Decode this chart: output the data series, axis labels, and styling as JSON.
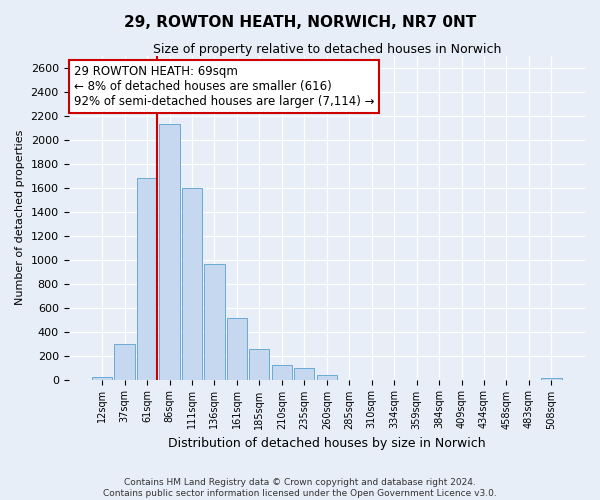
{
  "title": "29, ROWTON HEATH, NORWICH, NR7 0NT",
  "subtitle": "Size of property relative to detached houses in Norwich",
  "xlabel": "Distribution of detached houses by size in Norwich",
  "ylabel": "Number of detached properties",
  "bar_labels": [
    "12sqm",
    "37sqm",
    "61sqm",
    "86sqm",
    "111sqm",
    "136sqm",
    "161sqm",
    "185sqm",
    "210sqm",
    "235sqm",
    "260sqm",
    "285sqm",
    "310sqm",
    "334sqm",
    "359sqm",
    "384sqm",
    "409sqm",
    "434sqm",
    "458sqm",
    "483sqm",
    "508sqm"
  ],
  "bar_values": [
    20,
    300,
    1680,
    2130,
    1600,
    960,
    510,
    255,
    120,
    100,
    35,
    0,
    0,
    0,
    0,
    0,
    0,
    0,
    0,
    0,
    10
  ],
  "bar_color": "#c5d8f0",
  "bar_edge_color": "#6aaad4",
  "vline_color": "#cc0000",
  "annotation_title": "29 ROWTON HEATH: 69sqm",
  "annotation_line1": "← 8% of detached houses are smaller (616)",
  "annotation_line2": "92% of semi-detached houses are larger (7,114) →",
  "annotation_box_color": "#ffffff",
  "annotation_box_edge": "#cc0000",
  "ylim": [
    0,
    2700
  ],
  "yticks": [
    0,
    200,
    400,
    600,
    800,
    1000,
    1200,
    1400,
    1600,
    1800,
    2000,
    2200,
    2400,
    2600
  ],
  "footer_line1": "Contains HM Land Registry data © Crown copyright and database right 2024.",
  "footer_line2": "Contains public sector information licensed under the Open Government Licence v3.0.",
  "bg_color": "#e8eef8",
  "plot_bg_color": "#e8eef8"
}
